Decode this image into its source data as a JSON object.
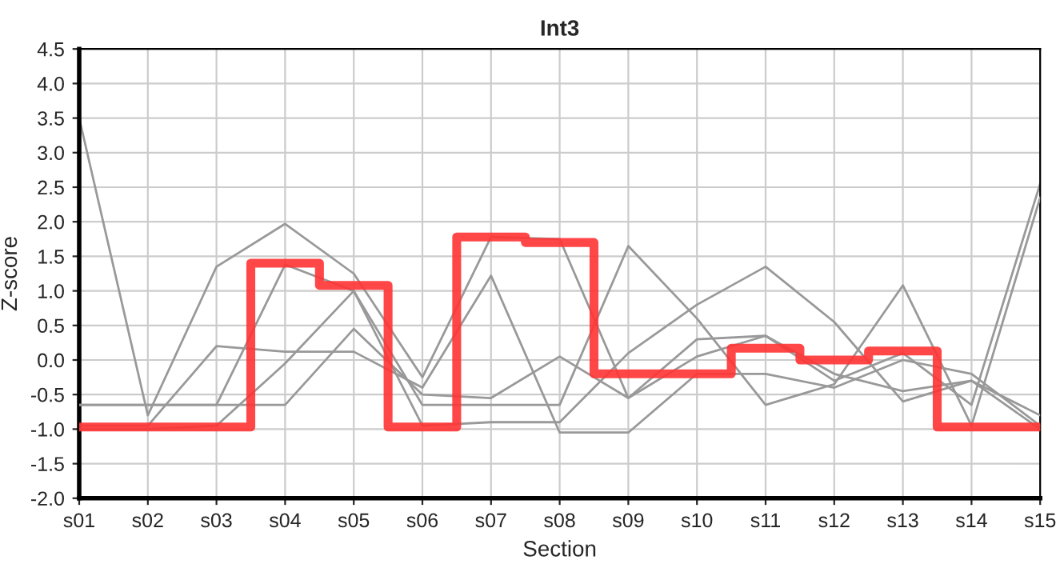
{
  "chart_data": {
    "type": "line",
    "title": "Int3",
    "xlabel": "Section",
    "ylabel": "Z-score",
    "categories": [
      "s01",
      "s02",
      "s03",
      "s04",
      "s05",
      "s06",
      "s07",
      "s08",
      "s09",
      "s10",
      "s11",
      "s12",
      "s13",
      "s14",
      "s15"
    ],
    "ylim": [
      -2.0,
      4.5
    ],
    "yticks": [
      {
        "value": -2,
        "label": "-2.0"
      },
      -1.5,
      {
        "value": -1,
        "label": "-1.0"
      },
      -0.5,
      {
        "value": 0,
        "label": "0.0"
      },
      0.5,
      {
        "value": 1,
        "label": "1.0"
      },
      1.5,
      {
        "value": 2,
        "label": "2.0"
      },
      2.5,
      {
        "value": 3,
        "label": "3.0"
      },
      3.5,
      {
        "value": 4,
        "label": "4.0"
      },
      4.5
    ],
    "grid": true,
    "legend": false,
    "series": [
      {
        "color": "#999999",
        "values": [
          3.5,
          -0.8,
          1.35,
          1.97,
          1.25,
          -0.25,
          1.78,
          1.75,
          -0.55,
          0.05,
          0.35,
          -0.3,
          0.1,
          -0.65,
          2.55
        ]
      },
      {
        "color": "#999999",
        "values": [
          -0.65,
          -0.65,
          -0.65,
          1.38,
          1.0,
          -0.65,
          -0.65,
          -0.65,
          1.65,
          0.6,
          -0.65,
          -0.35,
          1.08,
          -0.95,
          2.35
        ]
      },
      {
        "color": "#999999",
        "values": [
          -1.0,
          -1.0,
          -0.95,
          -0.05,
          1.0,
          -0.95,
          -0.9,
          -0.9,
          0.1,
          0.8,
          1.35,
          0.55,
          -0.6,
          -0.3,
          -1.0
        ]
      },
      {
        "color": "#999999",
        "values": [
          -0.65,
          -0.65,
          -0.65,
          -0.65,
          0.45,
          -0.5,
          -0.55,
          0.05,
          -0.55,
          0.3,
          0.35,
          -0.2,
          -0.45,
          -0.3,
          -0.8
        ]
      },
      {
        "color": "#999999",
        "values": [
          -0.95,
          -0.95,
          0.2,
          0.12,
          0.12,
          -0.4,
          1.22,
          -1.05,
          -1.05,
          -0.2,
          -0.2,
          -0.4,
          0.0,
          -0.2,
          -0.95
        ]
      },
      {
        "type": "step",
        "color": "#ff3333",
        "values": [
          -0.97,
          -0.97,
          -0.97,
          1.4,
          1.08,
          -0.97,
          1.78,
          1.7,
          -0.2,
          -0.2,
          0.17,
          0.0,
          0.13,
          -0.97,
          -0.97
        ]
      }
    ]
  }
}
